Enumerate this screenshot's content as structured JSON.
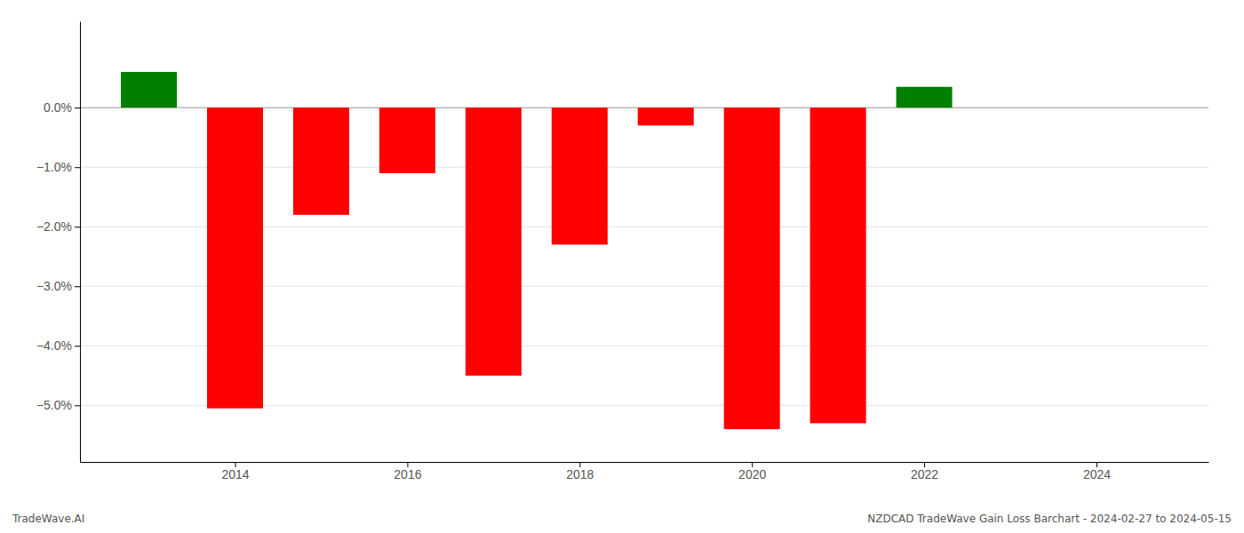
{
  "chart_data": {
    "type": "bar",
    "x": [
      2013,
      2014,
      2015,
      2016,
      2017,
      2018,
      2019,
      2020,
      2021,
      2022,
      2023
    ],
    "values": [
      0.006,
      -0.0505,
      -0.018,
      -0.011,
      -0.045,
      -0.023,
      -0.003,
      -0.054,
      -0.053,
      0.0035,
      0.0
    ],
    "colors": [
      "#008000",
      "#ff0000",
      "#ff0000",
      "#ff0000",
      "#ff0000",
      "#ff0000",
      "#ff0000",
      "#ff0000",
      "#ff0000",
      "#008000",
      "#008000"
    ],
    "xlim": [
      2012.2,
      2025.3
    ],
    "xticks": [
      2014,
      2016,
      2018,
      2020,
      2022,
      2024
    ],
    "ylim": [
      -0.0595,
      0.0145
    ],
    "yticks": [
      {
        "value": 0.0,
        "label": "0.0%"
      },
      {
        "value": -0.01,
        "label": "−1.0%"
      },
      {
        "value": -0.02,
        "label": "−2.0%"
      },
      {
        "value": -0.03,
        "label": "−3.0%"
      },
      {
        "value": -0.04,
        "label": "−4.0%"
      },
      {
        "value": -0.05,
        "label": "−5.0%"
      }
    ],
    "grid": true,
    "annotations": [
      "TradeWave.AI",
      "NZDCAD TradeWave Gain Loss Barchart - 2024-02-27 to 2024-05-15"
    ]
  }
}
